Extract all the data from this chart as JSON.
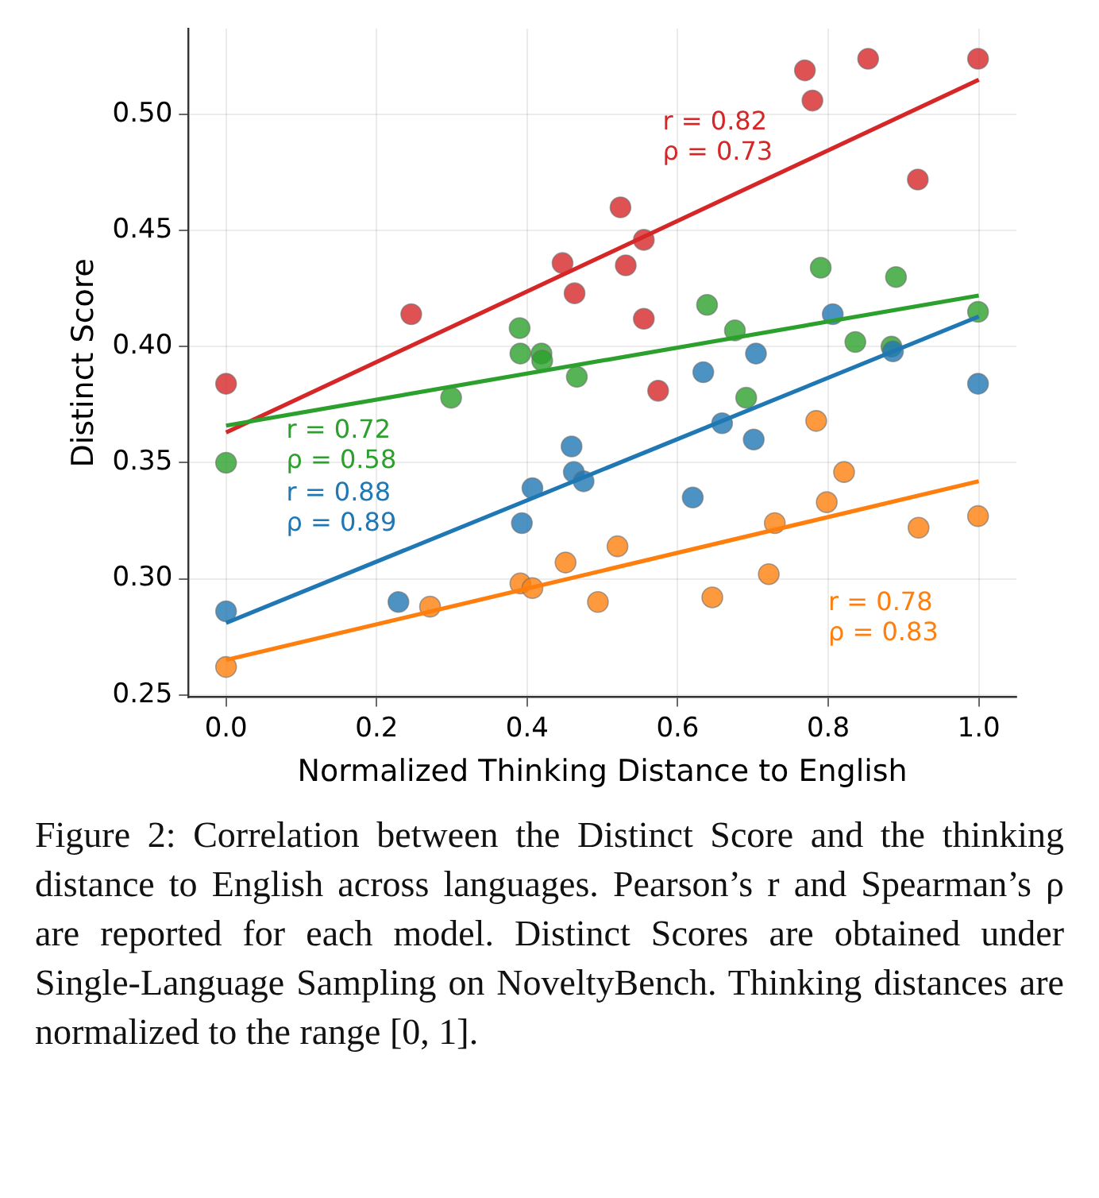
{
  "chart_data": {
    "type": "scatter",
    "xlabel": "Normalized Thinking Distance to English",
    "ylabel": "Distinct Score",
    "xlim": [
      -0.05,
      1.05
    ],
    "xticks": [
      {
        "value": 0,
        "label": "0.0"
      },
      0.2,
      0.4,
      0.6,
      0.8,
      {
        "value": 1,
        "label": "1.0"
      }
    ],
    "ylim": [
      0.249,
      0.537
    ],
    "yticks": [
      {
        "value": 0.25,
        "label": "0.25"
      },
      {
        "value": 0.3,
        "label": "0.30"
      },
      {
        "value": 0.35,
        "label": "0.35"
      },
      {
        "value": 0.4,
        "label": "0.40"
      },
      {
        "value": 0.45,
        "label": "0.45"
      },
      {
        "value": 0.5,
        "label": "0.50"
      }
    ],
    "grid": true,
    "legend": false,
    "marker": "circle",
    "series": [
      {
        "color": "#1f77b4",
        "x": [
          0,
          0.229,
          0.393,
          0.407,
          0.459,
          0.462,
          0.475,
          0.62,
          0.634,
          0.659,
          0.704,
          0.701,
          0.806,
          0.886,
          0.999
        ],
        "values": [
          0.286,
          0.29,
          0.324,
          0.339,
          0.357,
          0.346,
          0.342,
          0.335,
          0.389,
          0.367,
          0.397,
          0.36,
          0.414,
          0.398,
          0.384
        ]
      },
      {
        "color": "#ff7f0e",
        "x": [
          0,
          0.271,
          0.391,
          0.407,
          0.451,
          0.494,
          0.52,
          0.646,
          0.721,
          0.729,
          0.784,
          0.798,
          0.821,
          0.92,
          0.999
        ],
        "values": [
          0.262,
          0.288,
          0.298,
          0.296,
          0.307,
          0.29,
          0.314,
          0.292,
          0.302,
          0.324,
          0.368,
          0.333,
          0.346,
          0.322,
          0.327
        ]
      },
      {
        "color": "#2ca02c",
        "x": [
          0,
          0.299,
          0.39,
          0.391,
          0.419,
          0.42,
          0.466,
          0.639,
          0.676,
          0.691,
          0.79,
          0.836,
          0.89,
          0.884,
          0.999
        ],
        "values": [
          0.35,
          0.378,
          0.408,
          0.397,
          0.397,
          0.394,
          0.387,
          0.418,
          0.407,
          0.378,
          0.434,
          0.402,
          0.43,
          0.4,
          0.415
        ]
      },
      {
        "color": "#d62728",
        "x": [
          0,
          0.246,
          0.447,
          0.463,
          0.524,
          0.531,
          0.555,
          0.555,
          0.574,
          0.769,
          0.779,
          0.853,
          0.919,
          0.999
        ],
        "values": [
          0.384,
          0.414,
          0.436,
          0.423,
          0.46,
          0.435,
          0.446,
          0.412,
          0.381,
          0.519,
          0.506,
          0.524,
          0.472,
          0.524
        ]
      },
      {
        "type": "line",
        "marker": "none",
        "color": "#1f77b4",
        "x": [
          0,
          1
        ],
        "values": [
          0.281,
          0.413
        ]
      },
      {
        "type": "line",
        "marker": "none",
        "color": "#ff7f0e",
        "x": [
          0,
          1
        ],
        "values": [
          0.265,
          0.342
        ]
      },
      {
        "type": "line",
        "marker": "none",
        "color": "#2ca02c",
        "x": [
          0,
          1
        ],
        "values": [
          0.366,
          0.422
        ]
      },
      {
        "type": "line",
        "marker": "none",
        "color": "#d62728",
        "x": [
          0,
          1
        ],
        "values": [
          0.363,
          0.515
        ]
      }
    ],
    "annotations": [
      "r = 0.88\nρ = 0.89",
      "r = 0.78\nρ = 0.83",
      "r = 0.72\nρ = 0.58",
      "r = 0.82\nρ = 0.73",
      "Figure 2: Correlation between the Distinct Score and the thinking distance to English across languages. Pearson’s r and Spearman’s ρ are reported for each model. Distinct Scores are obtained under Single-Language Sampling on NoveltyBench. Thinking distances are normalized to the range [0, 1]."
    ]
  }
}
